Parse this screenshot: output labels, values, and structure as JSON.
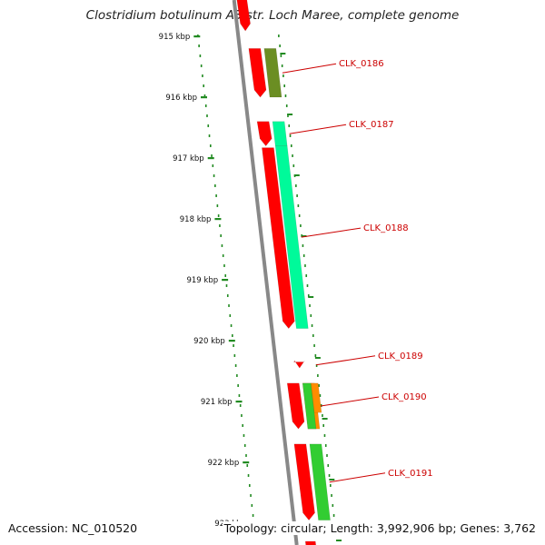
{
  "title": "Clostridium botulinum A3 str. Loch Maree, complete genome",
  "footer": {
    "accession": "Accession: NC_010520",
    "stats": "Topology: circular; Length: 3,992,906 bp; Genes: 3,762"
  },
  "ruler": {
    "unit": "kbp",
    "ticks": [
      "915 kbp",
      "916 kbp",
      "917 kbp",
      "918 kbp",
      "919 kbp",
      "920 kbp",
      "921 kbp",
      "922 kbp",
      "923 kbp"
    ]
  },
  "colors": {
    "backbone": "#888888",
    "cds": "#ff0000",
    "ruler": "#228b22",
    "label": "#cc0000",
    "CLK_0186": "#6b8e23",
    "CLK_0187": "#00fa9a",
    "CLK_0188": "#00fa9a",
    "CLK_0190": "#ff8c00",
    "CLK_0191": "#32cd32"
  },
  "genes": [
    {
      "label": "CLK_0186",
      "start": 915.2,
      "end": 916.0
    },
    {
      "label": "CLK_0187",
      "start": 916.4,
      "end": 916.8
    },
    {
      "label": "CLK_0188",
      "start": 916.8,
      "end": 919.8
    },
    {
      "label": "CLK_0189",
      "start": 920.35,
      "end": 920.45
    },
    {
      "label": "CLK_0190",
      "start": 920.7,
      "end": 921.45
    },
    {
      "label": "CLK_0191",
      "start": 921.7,
      "end": 922.95
    }
  ]
}
